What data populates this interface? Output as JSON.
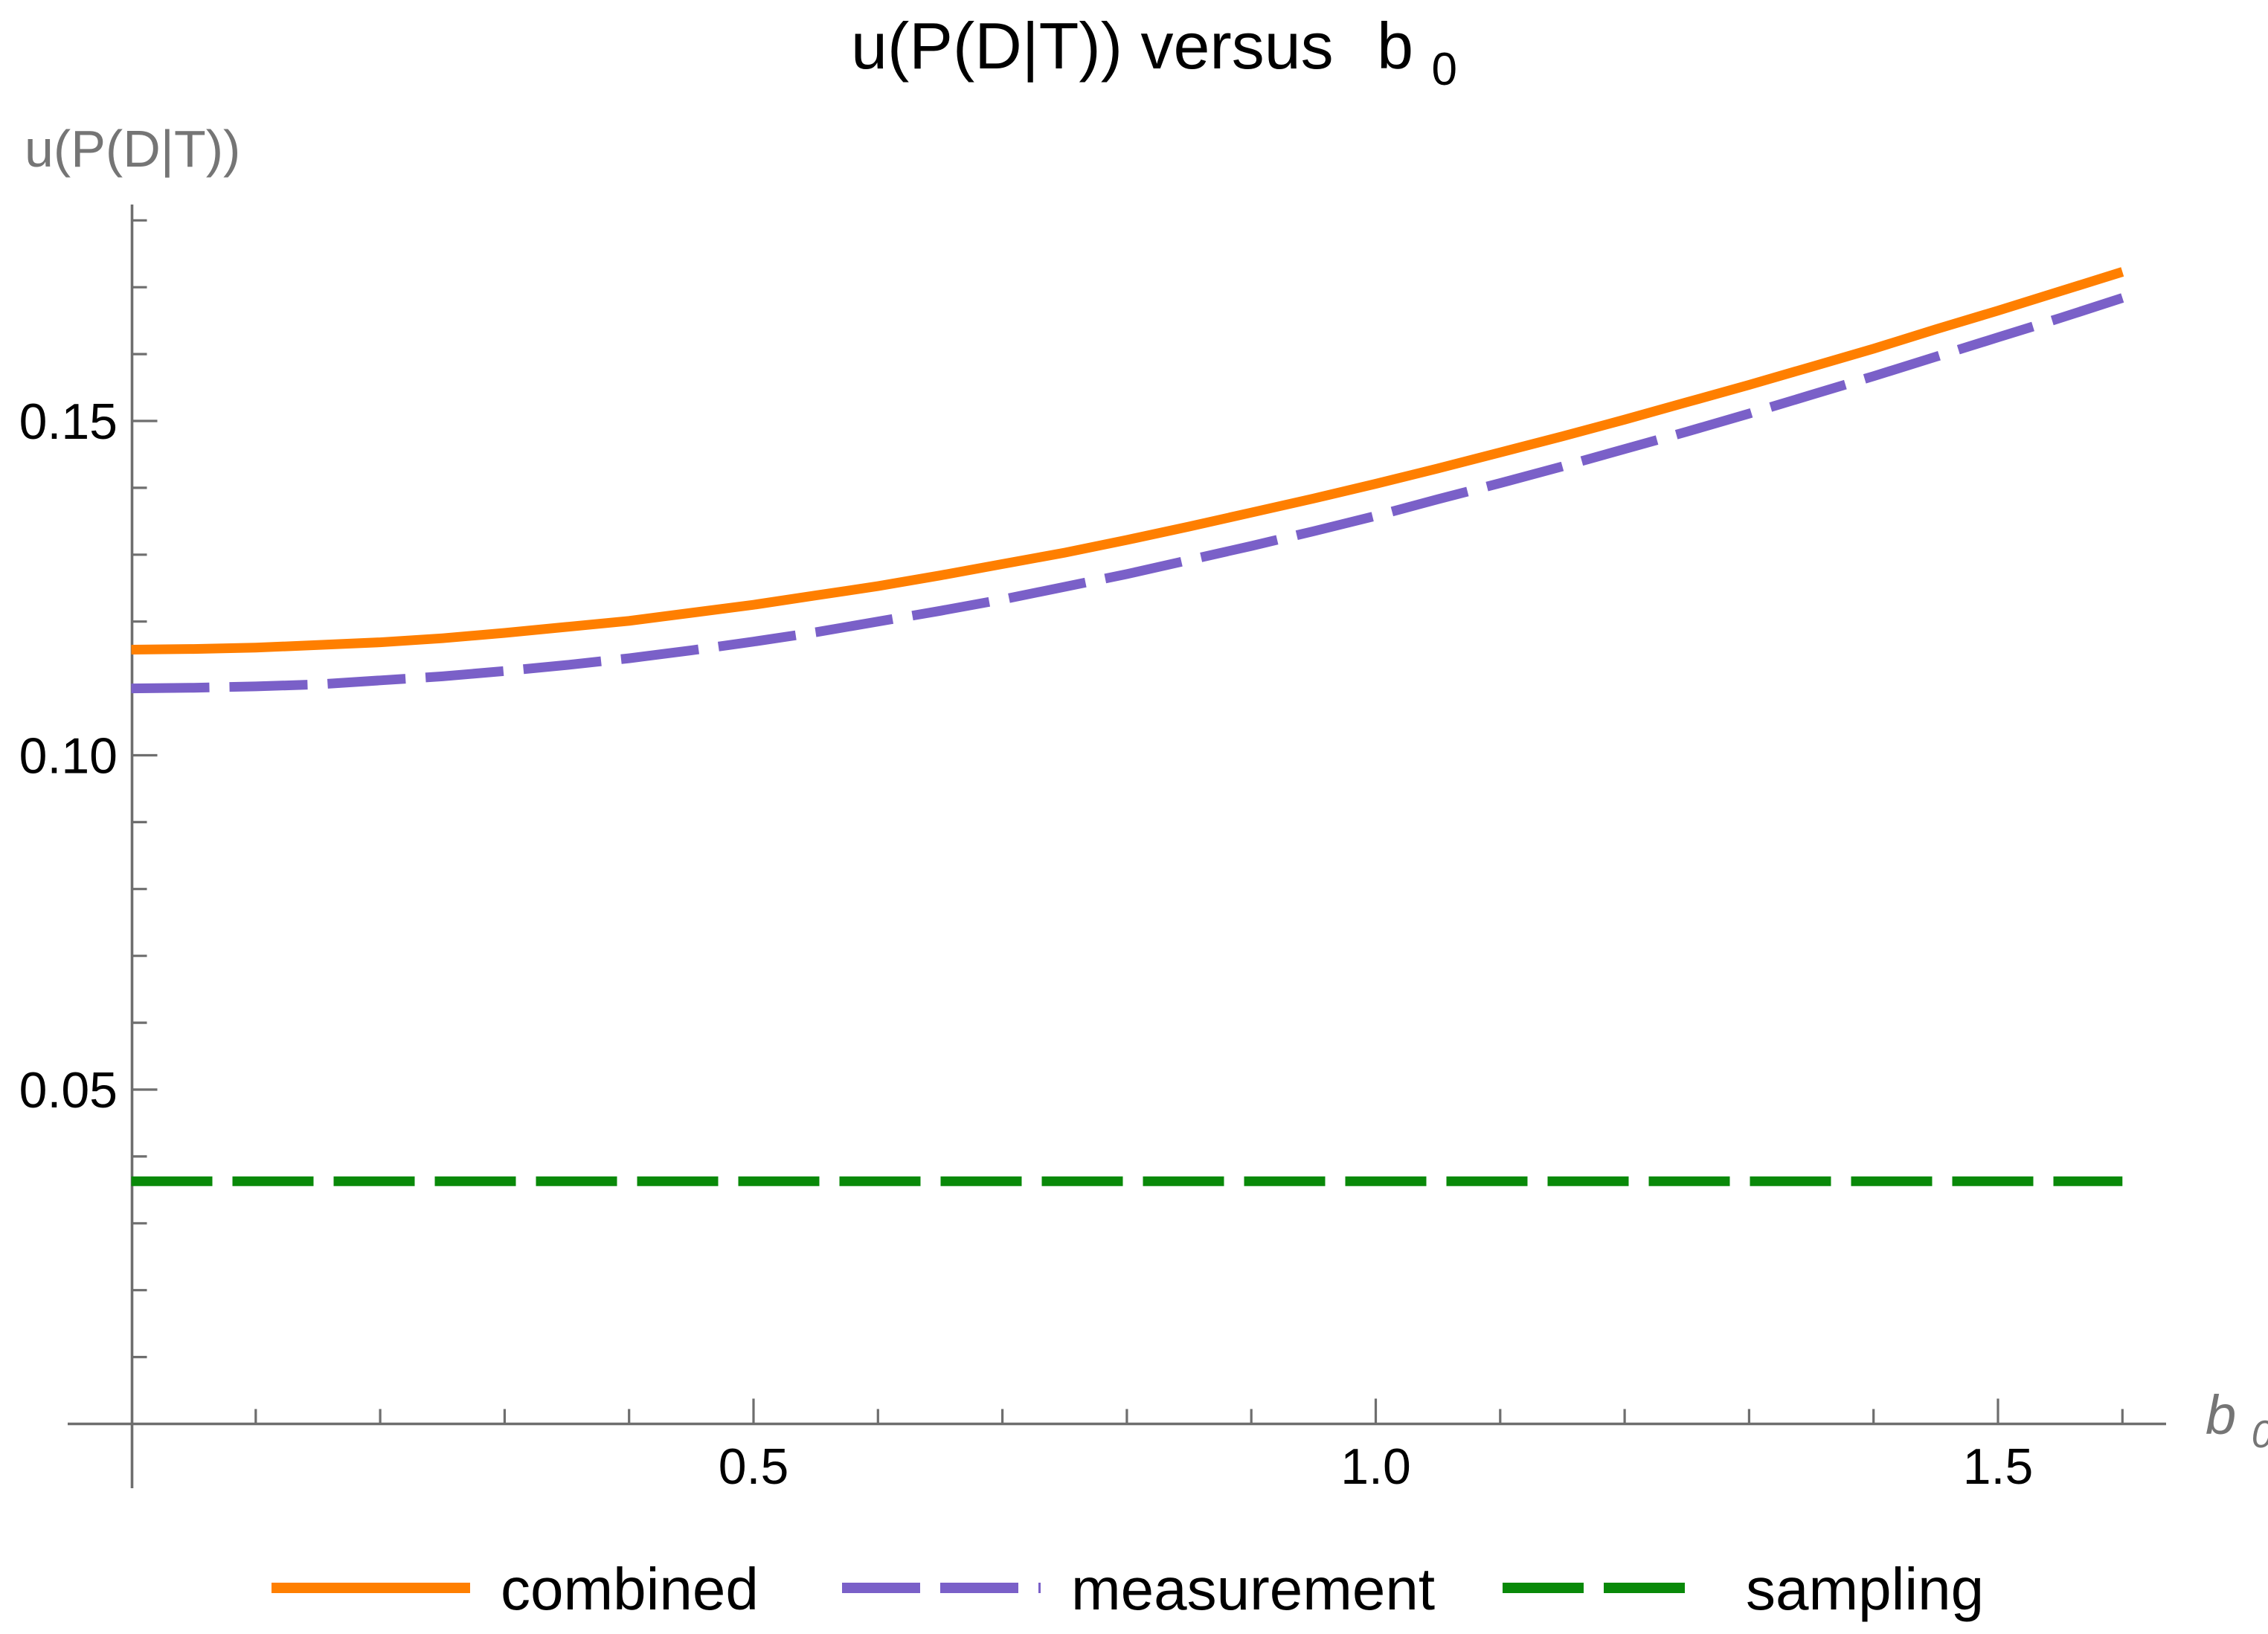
{
  "title": {
    "main": "u(P(D|T)) versus",
    "var": "b",
    "sub": "0"
  },
  "y_axis": {
    "label": "u(P(D|T))",
    "major_ticks": [
      {
        "v": 0.05,
        "label": "0.05"
      },
      {
        "v": 0.1,
        "label": "0.10"
      },
      {
        "v": 0.15,
        "label": "0.15"
      }
    ],
    "minor_ticks": [
      0.01,
      0.02,
      0.03,
      0.04,
      0.06,
      0.07,
      0.08,
      0.09,
      0.11,
      0.12,
      0.13,
      0.14,
      0.16,
      0.17,
      0.18
    ]
  },
  "x_axis": {
    "label_main": "b",
    "label_sub": "0",
    "major_ticks": [
      {
        "v": 0.5,
        "label": "0.5"
      },
      {
        "v": 1.0,
        "label": "1.0"
      },
      {
        "v": 1.5,
        "label": "1.5"
      }
    ],
    "minor_ticks": [
      0.1,
      0.2,
      0.3,
      0.4,
      0.6,
      0.7,
      0.8,
      0.9,
      1.1,
      1.2,
      1.3,
      1.4,
      1.6
    ]
  },
  "colors": {
    "axis": "#6E6E6E",
    "axis_labels": "#757575",
    "tick_text": "#000000",
    "combined": "#FF7F00",
    "measurement": "#7A60C8",
    "sampling": "#098909"
  },
  "legend": {
    "items": [
      {
        "label": "combined"
      },
      {
        "label": "measurement"
      },
      {
        "label": "sampling"
      }
    ]
  },
  "chart_data": {
    "type": "line",
    "title": "u(P(D|T)) versus b0",
    "xlabel": "b0",
    "ylabel": "u(P(D|T))",
    "xlim": [
      0,
      1.65
    ],
    "ylim": [
      -0.01,
      0.182
    ],
    "grid": false,
    "legend_position": "bottom",
    "x": [
      0,
      0.05,
      0.1,
      0.15,
      0.2,
      0.25,
      0.3,
      0.35,
      0.4,
      0.45,
      0.5,
      0.55,
      0.6,
      0.65,
      0.7,
      0.75,
      0.8,
      0.85,
      0.9,
      0.95,
      1.0,
      1.05,
      1.1,
      1.15,
      1.2,
      1.25,
      1.3,
      1.35,
      1.4,
      1.45,
      1.5,
      1.55,
      1.6
    ],
    "series": [
      {
        "name": "combined",
        "color": "#FF7F00",
        "style": "solid",
        "dash": null,
        "values": [
          0.1158,
          0.1159,
          0.1161,
          0.1165,
          0.1169,
          0.1175,
          0.1183,
          0.1192,
          0.1201,
          0.1213,
          0.1225,
          0.1239,
          0.1253,
          0.1269,
          0.1286,
          0.1303,
          0.1322,
          0.1342,
          0.1363,
          0.1384,
          0.1406,
          0.1429,
          0.1453,
          0.1477,
          0.1502,
          0.1528,
          0.1554,
          0.1581,
          0.1608,
          0.1637,
          0.1665,
          0.1694,
          0.1723
        ]
      },
      {
        "name": "measurement",
        "color": "#7A60C8",
        "style": "dashed",
        "dash": "105 27",
        "values": [
          0.11,
          0.1101,
          0.1103,
          0.1106,
          0.1112,
          0.1118,
          0.1126,
          0.1135,
          0.1145,
          0.1157,
          0.117,
          0.1184,
          0.12,
          0.1216,
          0.1233,
          0.1252,
          0.1271,
          0.1292,
          0.1313,
          0.1335,
          0.1358,
          0.1383,
          0.1407,
          0.1432,
          0.1458,
          0.1484,
          0.1511,
          0.1539,
          0.1567,
          0.1596,
          0.1625,
          0.1654,
          0.1684
        ]
      },
      {
        "name": "sampling",
        "color": "#098909",
        "style": "dashed",
        "dash": "109 27",
        "x": [
          0,
          1.6
        ],
        "values": [
          0.0363,
          0.0363
        ]
      }
    ]
  }
}
